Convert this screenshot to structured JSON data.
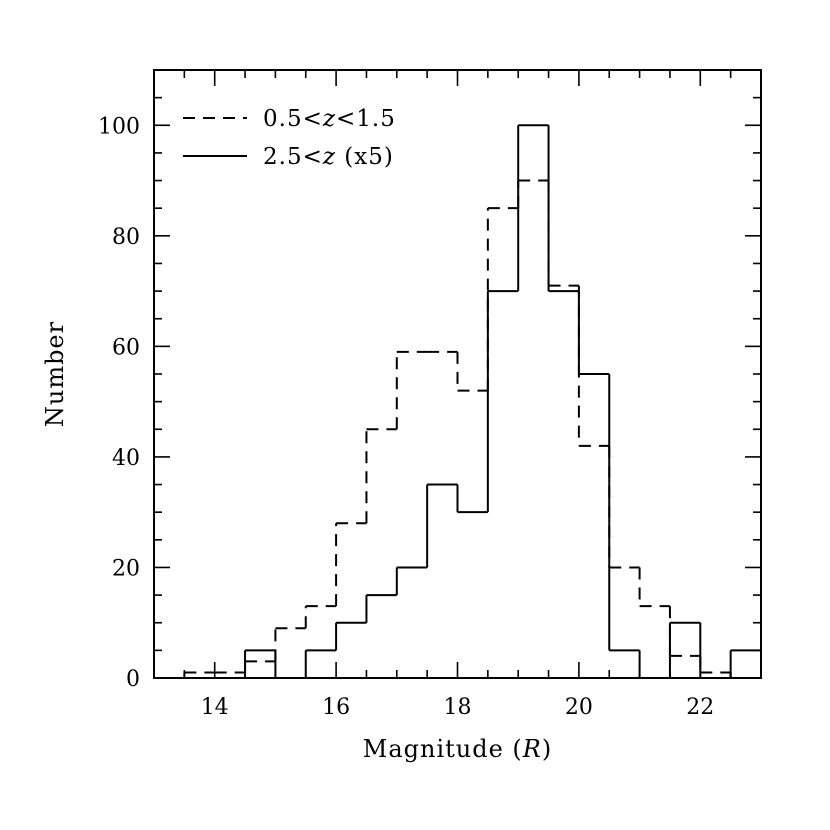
{
  "chart_data": {
    "type": "histogram",
    "xlabel": "Magnitude",
    "xlabel_var": "R",
    "ylabel": "Number",
    "xlim": [
      13,
      23
    ],
    "ylim": [
      0,
      110
    ],
    "xticks": [
      14,
      16,
      18,
      20,
      22
    ],
    "yticks": [
      0,
      20,
      40,
      60,
      80,
      100
    ],
    "x_minor_step": 0.5,
    "y_minor_step": 5,
    "bin_edges": [
      13.5,
      14.0,
      14.5,
      15.0,
      15.5,
      16.0,
      16.5,
      17.0,
      17.5,
      18.0,
      18.5,
      19.0,
      19.5,
      20.0,
      20.5,
      21.0,
      21.5,
      22.0,
      22.5,
      23.0
    ],
    "legend_position": "top-left",
    "series": [
      {
        "name": "0.5<z<1.5",
        "label_parts": [
          "0.5<",
          "z",
          "<1.5"
        ],
        "style": "dashed",
        "values": [
          1,
          1,
          3,
          9,
          13,
          28,
          45,
          59,
          59,
          52,
          85,
          90,
          71,
          42,
          20,
          13,
          4,
          1,
          0
        ]
      },
      {
        "name": "2.5<z (x5)",
        "label_parts": [
          "2.5<",
          "z",
          "  (x5)"
        ],
        "style": "solid",
        "values": [
          0,
          0,
          5,
          0,
          5,
          10,
          15,
          20,
          35,
          30,
          70,
          100,
          70,
          55,
          5,
          0,
          10,
          0,
          5
        ]
      }
    ]
  }
}
